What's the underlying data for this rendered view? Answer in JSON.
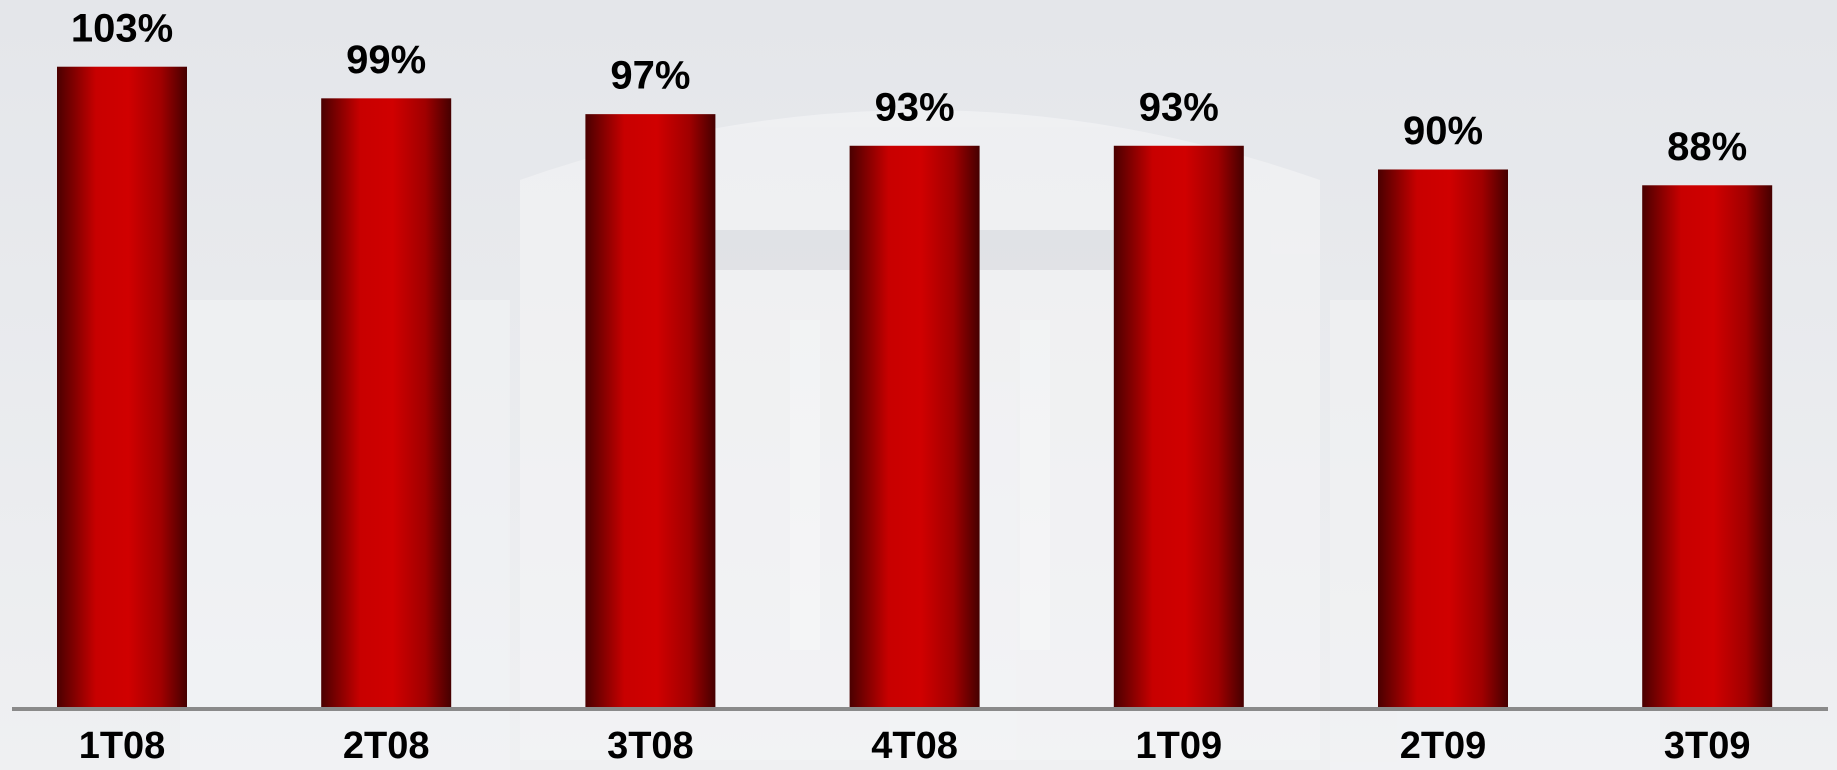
{
  "chart_data": {
    "type": "bar",
    "categories": [
      "1T08",
      "2T08",
      "3T08",
      "4T08",
      "1T09",
      "2T09",
      "3T09"
    ],
    "values": [
      103,
      99,
      97,
      93,
      93,
      90,
      88
    ],
    "value_labels": [
      "103%",
      "99%",
      "97%",
      "93%",
      "93%",
      "90%",
      "88%"
    ],
    "color": "#c80000",
    "ylim": [
      22,
      106
    ]
  }
}
